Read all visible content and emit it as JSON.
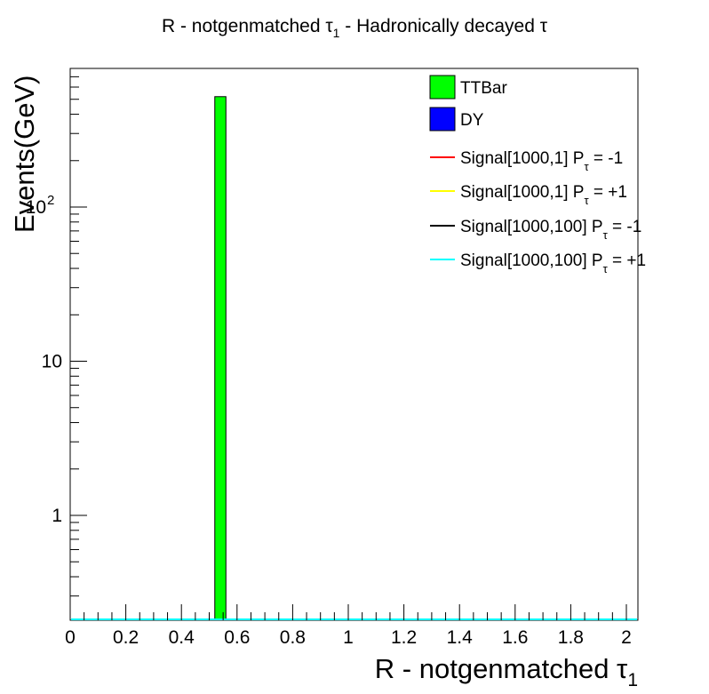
{
  "chart_data": {
    "type": "bar",
    "title": {
      "main": "R - notgenmatched τ",
      "main_sub": "1",
      "rest": " - Hadronically decayed τ"
    },
    "xlabel": {
      "main": "R - notgenmatched τ",
      "sub": "1"
    },
    "ylabel": "Events(GeV)",
    "xlim": [
      0,
      2
    ],
    "ylim": [
      0.2,
      800
    ],
    "log_y": true,
    "grid": false,
    "x_ticks": [
      "0",
      "0.2",
      "0.4",
      "0.6",
      "0.8",
      "1",
      "1.2",
      "1.4",
      "1.6",
      "1.8",
      "2"
    ],
    "y_ticks": [
      {
        "value": 1,
        "label": "1"
      },
      {
        "value": 10,
        "label": "10"
      },
      {
        "value": 100,
        "base": "10",
        "exp": "2"
      }
    ],
    "bin_width": 0.04,
    "series": [
      {
        "name": "TTBar",
        "color": "#00ff00",
        "style": "fill",
        "bars": [
          {
            "x_low": 0.52,
            "x_high": 0.56,
            "value": 520
          }
        ]
      },
      {
        "name": "DY",
        "color": "#0000ff",
        "style": "fill",
        "bars": []
      },
      {
        "name": "Signal[1000,1] P",
        "sub": "τ",
        "suffix": " = -1",
        "color": "#ff0000",
        "style": "line",
        "bars": []
      },
      {
        "name": "Signal[1000,1] P",
        "sub": "τ",
        "suffix": " = +1",
        "color": "#ffff00",
        "style": "line",
        "bars": []
      },
      {
        "name": "Signal[1000,100] P",
        "sub": "τ",
        "suffix": " = -1",
        "color": "#000000",
        "style": "line",
        "bars": []
      },
      {
        "name": "Signal[1000,100] P",
        "sub": "τ",
        "suffix": " = +1",
        "color": "#00ffff",
        "style": "line",
        "bars": []
      }
    ],
    "legend_position": "top-right"
  }
}
